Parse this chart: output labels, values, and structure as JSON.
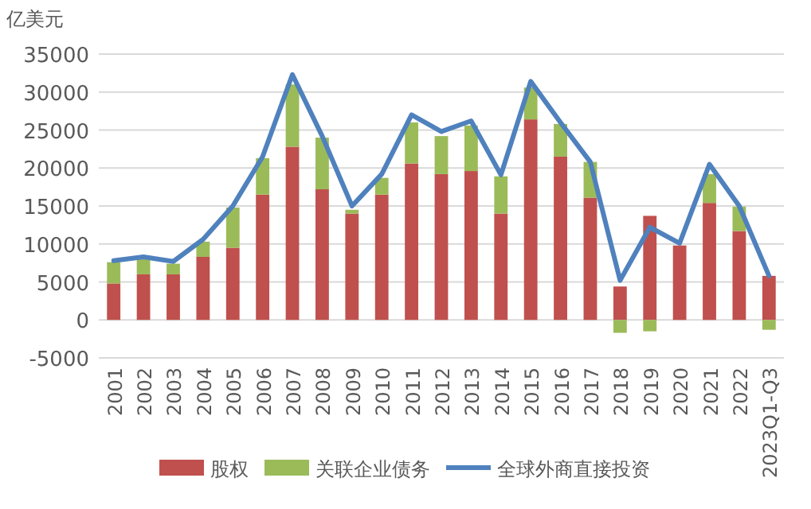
{
  "chart_data": {
    "type": "bar",
    "stacked": true,
    "ylabel": "亿美元",
    "categories": [
      "2001",
      "2002",
      "2003",
      "2004",
      "2005",
      "2006",
      "2007",
      "2008",
      "2009",
      "2010",
      "2011",
      "2012",
      "2013",
      "2014",
      "2015",
      "2016",
      "2017",
      "2018",
      "2019",
      "2020",
      "2021",
      "2022",
      "2023Q1-Q3"
    ],
    "series": [
      {
        "name": "股权",
        "color": "#c0504d",
        "values": [
          4800,
          6000,
          6000,
          8300,
          9500,
          16500,
          22800,
          17200,
          14000,
          16500,
          20600,
          19200,
          19600,
          14000,
          26400,
          21500,
          16100,
          4400,
          13700,
          9800,
          15400,
          11700,
          5800
        ]
      },
      {
        "name": "关联企业债务",
        "color": "#9bbb59",
        "values": [
          2800,
          2000,
          1400,
          2000,
          5300,
          4800,
          8200,
          6800,
          500,
          2200,
          5400,
          5000,
          6000,
          4900,
          4200,
          4300,
          4700,
          -1700,
          -1500,
          0,
          3800,
          3200,
          -1300
        ]
      },
      {
        "name": "全球外商直接投资",
        "type": "line",
        "color": "#4f81bd",
        "values": [
          7800,
          8300,
          7700,
          10600,
          15000,
          21500,
          32300,
          24200,
          15000,
          19200,
          27000,
          24800,
          26200,
          19100,
          31400,
          26000,
          20800,
          5200,
          12200,
          10100,
          20500,
          15000,
          5800
        ]
      }
    ],
    "ylim": [
      -5000,
      35000
    ],
    "yticks": [
      -5000,
      0,
      5000,
      10000,
      15000,
      20000,
      25000,
      30000,
      35000
    ],
    "grid": "y",
    "legend": "bottom",
    "marker": "none",
    "line_style": "solid"
  }
}
